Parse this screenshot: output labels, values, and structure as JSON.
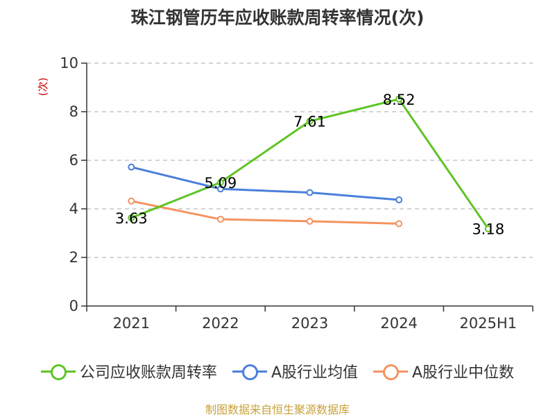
{
  "title": "珠江钢管历年应收账款周转率情况(次)",
  "source": "制图数据来自恒生聚源数据库",
  "chart_data": {
    "type": "line",
    "categories": [
      "2021",
      "2022",
      "2023",
      "2024",
      "2025H1"
    ],
    "ylabel": "(次)",
    "ylim": [
      0,
      10
    ],
    "yticks": [
      0,
      2,
      4,
      6,
      8,
      10
    ],
    "grid": true,
    "legend_position": "bottom",
    "series": [
      {
        "name": "公司应收账款周转率",
        "color": "#5ec424",
        "values": [
          3.63,
          5.09,
          7.61,
          8.52,
          3.18
        ],
        "labels": [
          "3.63",
          "5.09",
          "7.61",
          "8.52",
          "3.18"
        ],
        "show_labels": true
      },
      {
        "name": "A股行业均值",
        "color": "#4a7fdb",
        "values": [
          5.72,
          4.82,
          4.67,
          4.37,
          null
        ],
        "show_labels": false
      },
      {
        "name": "A股行业中位数",
        "color": "#f59360",
        "values": [
          4.32,
          3.57,
          3.49,
          3.39,
          null
        ],
        "show_labels": false
      }
    ]
  }
}
